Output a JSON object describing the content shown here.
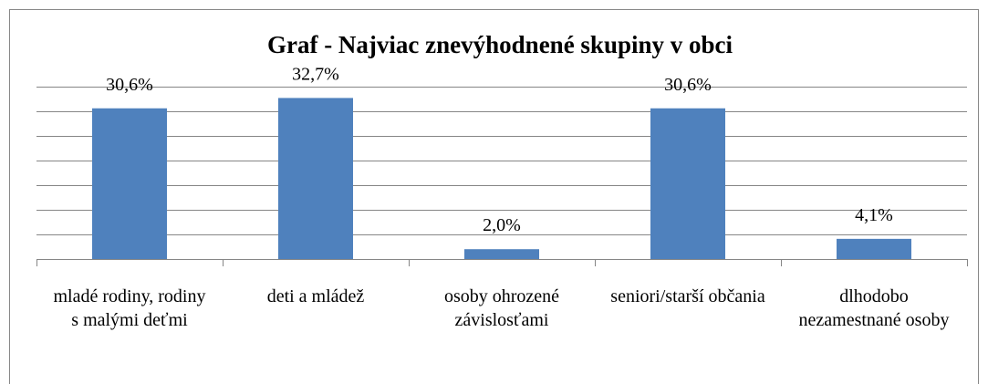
{
  "chart_data": {
    "type": "bar",
    "title": "Graf - Najviac znevýhodnené skupiny v obci",
    "categories": [
      "mladé rodiny, rodiny s malými deťmi",
      "deti a mládež",
      "osoby ohrozené závislosťami",
      "seniori/starší občania",
      "dlhodobo nezamestnané osoby"
    ],
    "values": [
      30.6,
      32.7,
      2.0,
      30.6,
      4.1
    ],
    "value_labels": [
      "30,6%",
      "32,7%",
      "2,0%",
      "30,6%",
      "4,1%"
    ],
    "color": "#4f81bd",
    "ylim": [
      0,
      35
    ],
    "yticks": [
      0,
      5,
      10,
      15,
      20,
      25,
      30,
      35
    ],
    "grid": true
  }
}
